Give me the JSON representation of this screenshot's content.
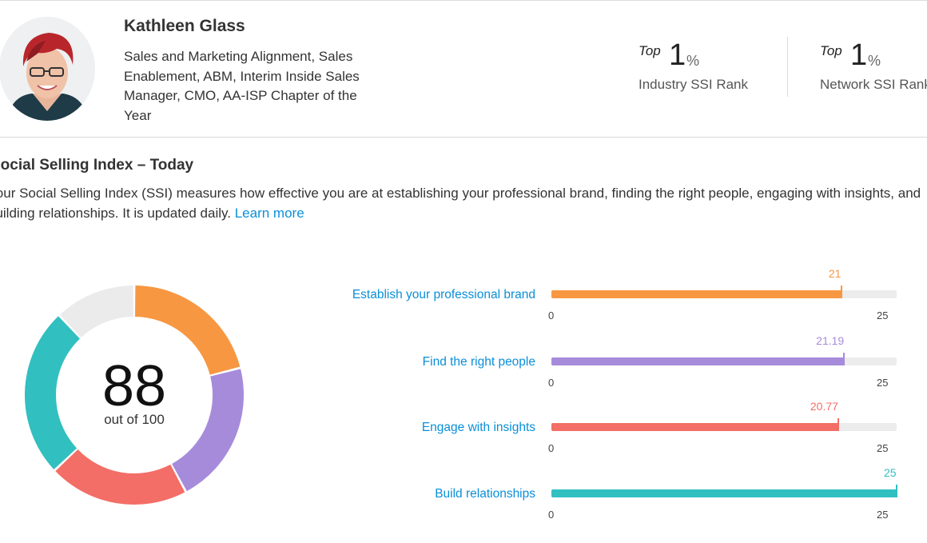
{
  "profile": {
    "name": "Kathleen Glass",
    "headline": "Sales and Marketing Alignment, Sales Enablement, ABM, Interim Inside Sales Manager, CMO, AA-ISP Chapter of the Year"
  },
  "ranks": [
    {
      "top_label": "Top",
      "value": "1",
      "unit": "%",
      "label": "Industry SSI Rank"
    },
    {
      "top_label": "Top",
      "value": "1",
      "unit": "%",
      "label": "Network SSI Rank"
    }
  ],
  "ssi": {
    "title": "Social Selling Index – Today",
    "description": "Your Social Selling Index (SSI) measures how effective you are at establishing your professional brand, finding the right people, engaging with insights, and building relationships. It is updated daily.",
    "learn_more": "Learn more",
    "score": "88",
    "score_caption": "out of 100",
    "remainder_color": "#ebebeb"
  },
  "chart_data": {
    "type": "bar",
    "categories": [
      "Establish your professional brand",
      "Find the right people",
      "Engage with insights",
      "Build relationships"
    ],
    "values": [
      21,
      21.19,
      20.77,
      25
    ],
    "value_labels": [
      "21",
      "21.19",
      "20.77",
      "25"
    ],
    "colors": [
      "#f79741",
      "#a78bdb",
      "#f36e66",
      "#32bfc0"
    ],
    "xlim": [
      0,
      25
    ],
    "axis_min_label": "0",
    "axis_max_label": "25",
    "total": 88,
    "total_max": 100
  },
  "colors": {
    "link": "#0a8fd8",
    "track": "#ececec"
  }
}
